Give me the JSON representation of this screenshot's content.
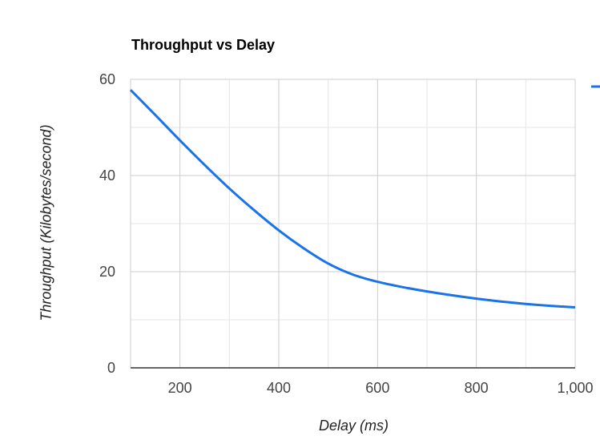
{
  "chart_data": {
    "type": "line",
    "title": "Throughput vs Delay",
    "xlabel": "Delay (ms)",
    "ylabel": "Throughput (Kilobytes/second)",
    "xlim": [
      100,
      1000
    ],
    "ylim": [
      0,
      60
    ],
    "x_ticks": [
      200,
      400,
      600,
      800,
      1000
    ],
    "x_tick_labels": [
      "200",
      "400",
      "600",
      "800",
      "1,000"
    ],
    "y_ticks": [
      0,
      20,
      40,
      60
    ],
    "y_tick_labels": [
      "0",
      "20",
      "40",
      "60"
    ],
    "grid": true,
    "legend": "right",
    "colors": {
      "line": "#1a73e8",
      "grid": "#cccccc",
      "minor_grid": "#e6e6e6",
      "axis": "#333333"
    },
    "series": [
      {
        "x": [
          100,
          150,
          200,
          250,
          300,
          350,
          400,
          450,
          500,
          550,
          600,
          650,
          700,
          750,
          800,
          850,
          900,
          950,
          1000
        ],
        "values": [
          57.8,
          52.6,
          47.3,
          42.2,
          37.3,
          32.8,
          28.6,
          24.9,
          21.7,
          19.4,
          17.9,
          16.8,
          15.9,
          15.1,
          14.4,
          13.8,
          13.3,
          12.9,
          12.6
        ]
      }
    ]
  }
}
